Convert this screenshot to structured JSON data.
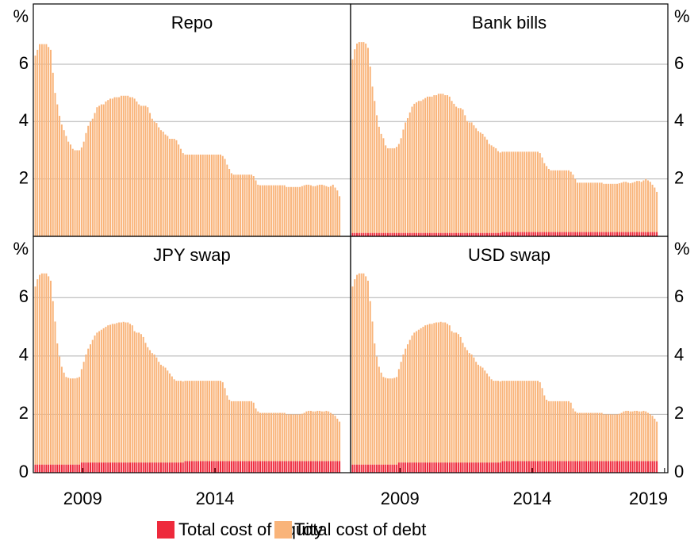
{
  "chart_data": [
    {
      "type": "bar",
      "stacked": true,
      "title": "Repo",
      "ylabel": "%",
      "ylim": [
        0,
        8.1
      ],
      "yticks": [
        2,
        4,
        6
      ],
      "grid": true,
      "xlim": [
        -0.9,
        143
      ],
      "series": [
        {
          "name": "Total cost of debt",
          "color": "#f9b47a",
          "values": [
            6.3,
            6.5,
            6.7,
            6.7,
            6.7,
            6.7,
            6.6,
            6.5,
            5.7,
            5.0,
            4.6,
            4.2,
            3.9,
            3.7,
            3.5,
            3.3,
            3.2,
            3.05,
            3.0,
            3.0,
            3.0,
            3.1,
            3.3,
            3.6,
            3.85,
            4.0,
            4.1,
            4.3,
            4.5,
            4.55,
            4.6,
            4.6,
            4.7,
            4.75,
            4.8,
            4.8,
            4.85,
            4.85,
            4.85,
            4.9,
            4.9,
            4.9,
            4.9,
            4.85,
            4.85,
            4.8,
            4.7,
            4.6,
            4.55,
            4.55,
            4.55,
            4.5,
            4.3,
            4.1,
            4.0,
            3.95,
            3.8,
            3.7,
            3.65,
            3.55,
            3.5,
            3.4,
            3.4,
            3.4,
            3.35,
            3.2,
            3.05,
            2.9,
            2.85,
            2.85,
            2.85,
            2.85,
            2.85,
            2.85,
            2.85,
            2.85,
            2.85,
            2.85,
            2.85,
            2.85,
            2.85,
            2.85,
            2.85,
            2.85,
            2.85,
            2.8,
            2.7,
            2.5,
            2.35,
            2.2,
            2.15,
            2.15,
            2.15,
            2.15,
            2.15,
            2.15,
            2.15,
            2.15,
            2.15,
            2.1,
            1.95,
            1.8,
            1.78,
            1.78,
            1.78,
            1.78,
            1.78,
            1.78,
            1.78,
            1.78,
            1.78,
            1.78,
            1.78,
            1.78,
            1.72,
            1.72,
            1.72,
            1.72,
            1.72,
            1.72,
            1.72,
            1.75,
            1.78,
            1.8,
            1.8,
            1.78,
            1.75,
            1.75,
            1.78,
            1.8,
            1.8,
            1.78,
            1.75,
            1.72,
            1.75,
            1.8,
            1.7,
            1.6,
            1.4
          ]
        }
      ]
    },
    {
      "type": "bar",
      "stacked": true,
      "title": "Bank bills",
      "ylabel": "%",
      "ylim": [
        0,
        8.1
      ],
      "yticks": [
        2,
        4,
        6
      ],
      "grid": true,
      "xlim": [
        -0.9,
        143
      ],
      "series": [
        {
          "name": "Total cost of equity",
          "color": "#ee2a3c",
          "values": [
            0.12,
            0.12,
            0.12,
            0.12,
            0.12,
            0.12,
            0.12,
            0.12,
            0.12,
            0.12,
            0.12,
            0.12,
            0.12,
            0.12,
            0.12,
            0.12,
            0.12,
            0.12,
            0.12,
            0.12,
            0.12,
            0.12,
            0.12,
            0.12,
            0.12,
            0.12,
            0.12,
            0.12,
            0.12,
            0.12,
            0.12,
            0.12,
            0.12,
            0.12,
            0.12,
            0.12,
            0.12,
            0.12,
            0.12,
            0.12,
            0.12,
            0.12,
            0.12,
            0.12,
            0.12,
            0.12,
            0.12,
            0.12,
            0.12,
            0.12,
            0.12,
            0.12,
            0.12,
            0.12,
            0.12,
            0.12,
            0.12,
            0.12,
            0.12,
            0.12,
            0.12,
            0.12,
            0.12,
            0.12,
            0.12,
            0.12,
            0.12,
            0.12,
            0.15,
            0.15,
            0.15,
            0.15,
            0.15,
            0.15,
            0.15,
            0.15,
            0.15,
            0.15,
            0.15,
            0.15,
            0.15,
            0.15,
            0.15,
            0.15,
            0.15,
            0.15,
            0.15,
            0.15,
            0.15,
            0.15,
            0.15,
            0.15,
            0.15,
            0.15,
            0.15,
            0.15,
            0.15,
            0.15,
            0.15,
            0.15,
            0.15,
            0.15,
            0.15,
            0.15,
            0.15,
            0.15,
            0.15,
            0.15,
            0.15,
            0.15,
            0.15,
            0.15,
            0.15,
            0.15,
            0.15,
            0.15,
            0.15,
            0.15,
            0.15,
            0.15,
            0.15,
            0.15,
            0.15,
            0.15,
            0.15,
            0.15,
            0.15,
            0.15,
            0.15,
            0.15,
            0.15,
            0.15,
            0.15,
            0.15,
            0.15,
            0.15,
            0.15,
            0.15,
            0.15
          ]
        },
        {
          "name": "Total cost of debt",
          "color": "#f9b47a",
          "values": [
            6.05,
            6.4,
            6.6,
            6.65,
            6.65,
            6.65,
            6.6,
            6.45,
            5.8,
            5.1,
            4.6,
            4.1,
            3.7,
            3.45,
            3.3,
            3.05,
            2.95,
            2.95,
            2.95,
            2.95,
            3.0,
            3.1,
            3.3,
            3.6,
            3.85,
            4.0,
            4.2,
            4.4,
            4.5,
            4.55,
            4.6,
            4.6,
            4.65,
            4.7,
            4.75,
            4.75,
            4.75,
            4.8,
            4.8,
            4.85,
            4.85,
            4.85,
            4.8,
            4.8,
            4.75,
            4.6,
            4.5,
            4.4,
            4.35,
            4.35,
            4.3,
            4.1,
            3.9,
            3.85,
            3.85,
            3.75,
            3.65,
            3.55,
            3.5,
            3.45,
            3.35,
            3.25,
            3.1,
            3.05,
            3.0,
            2.95,
            2.85,
            2.8,
            2.8,
            2.8,
            2.8,
            2.8,
            2.8,
            2.8,
            2.8,
            2.8,
            2.8,
            2.8,
            2.8,
            2.8,
            2.8,
            2.8,
            2.8,
            2.8,
            2.8,
            2.75,
            2.6,
            2.4,
            2.3,
            2.2,
            2.15,
            2.15,
            2.15,
            2.15,
            2.15,
            2.15,
            2.15,
            2.15,
            2.15,
            2.1,
            2.0,
            1.85,
            1.72,
            1.72,
            1.72,
            1.72,
            1.72,
            1.72,
            1.72,
            1.72,
            1.72,
            1.72,
            1.72,
            1.72,
            1.68,
            1.68,
            1.68,
            1.68,
            1.68,
            1.68,
            1.68,
            1.7,
            1.72,
            1.75,
            1.75,
            1.72,
            1.7,
            1.72,
            1.75,
            1.78,
            1.78,
            1.75,
            1.8,
            1.85,
            1.8,
            1.75,
            1.65,
            1.55,
            1.4
          ]
        }
      ]
    },
    {
      "type": "bar",
      "stacked": true,
      "title": "JPY swap",
      "ylabel": "%",
      "ylim": [
        0,
        8.1
      ],
      "yticks": [
        0,
        2,
        4,
        6
      ],
      "grid": true,
      "xlim": [
        -0.9,
        143
      ],
      "xticks": [
        {
          "value": 21.5,
          "label": "2009"
        },
        {
          "value": 81.5,
          "label": "2014"
        }
      ],
      "series": [
        {
          "name": "Total cost of equity",
          "color": "#ee2a3c",
          "values": [
            0.28,
            0.28,
            0.28,
            0.28,
            0.28,
            0.28,
            0.28,
            0.28,
            0.28,
            0.28,
            0.28,
            0.28,
            0.28,
            0.28,
            0.28,
            0.28,
            0.28,
            0.28,
            0.28,
            0.28,
            0.28,
            0.35,
            0.35,
            0.35,
            0.35,
            0.35,
            0.35,
            0.35,
            0.35,
            0.35,
            0.35,
            0.35,
            0.35,
            0.35,
            0.35,
            0.35,
            0.35,
            0.35,
            0.35,
            0.35,
            0.35,
            0.35,
            0.35,
            0.35,
            0.35,
            0.35,
            0.35,
            0.35,
            0.35,
            0.35,
            0.35,
            0.35,
            0.35,
            0.35,
            0.35,
            0.35,
            0.35,
            0.35,
            0.35,
            0.35,
            0.35,
            0.35,
            0.35,
            0.35,
            0.35,
            0.35,
            0.35,
            0.35,
            0.4,
            0.4,
            0.4,
            0.4,
            0.4,
            0.4,
            0.4,
            0.4,
            0.4,
            0.4,
            0.4,
            0.4,
            0.4,
            0.4,
            0.4,
            0.4,
            0.4,
            0.4,
            0.4,
            0.4,
            0.4,
            0.4,
            0.4,
            0.4,
            0.4,
            0.4,
            0.4,
            0.4,
            0.4,
            0.4,
            0.4,
            0.4,
            0.4,
            0.4,
            0.4,
            0.4,
            0.4,
            0.4,
            0.4,
            0.4,
            0.4,
            0.4,
            0.4,
            0.4,
            0.4,
            0.4,
            0.4,
            0.4,
            0.4,
            0.4,
            0.4,
            0.4,
            0.4,
            0.4,
            0.4,
            0.4,
            0.4,
            0.4,
            0.4,
            0.4,
            0.4,
            0.4,
            0.4,
            0.4,
            0.4,
            0.4,
            0.4,
            0.4,
            0.4,
            0.4,
            0.4
          ]
        },
        {
          "name": "Total cost of debt",
          "color": "#f9b47a",
          "values": [
            6.1,
            6.35,
            6.5,
            6.55,
            6.55,
            6.55,
            6.45,
            6.3,
            5.6,
            4.9,
            4.15,
            3.7,
            3.35,
            3.15,
            3.0,
            2.97,
            2.95,
            2.95,
            2.95,
            2.97,
            3.0,
            3.2,
            3.45,
            3.7,
            3.9,
            4.05,
            4.2,
            4.35,
            4.45,
            4.5,
            4.55,
            4.6,
            4.65,
            4.7,
            4.72,
            4.75,
            4.75,
            4.78,
            4.8,
            4.8,
            4.82,
            4.8,
            4.8,
            4.75,
            4.7,
            4.5,
            4.45,
            4.45,
            4.4,
            4.3,
            4.1,
            3.95,
            3.85,
            3.75,
            3.7,
            3.6,
            3.45,
            3.35,
            3.3,
            3.25,
            3.15,
            3.05,
            2.95,
            2.85,
            2.8,
            2.8,
            2.8,
            2.78,
            2.75,
            2.75,
            2.75,
            2.75,
            2.75,
            2.75,
            2.75,
            2.75,
            2.75,
            2.75,
            2.75,
            2.75,
            2.75,
            2.75,
            2.75,
            2.75,
            2.75,
            2.7,
            2.5,
            2.25,
            2.1,
            2.05,
            2.05,
            2.05,
            2.05,
            2.05,
            2.05,
            2.05,
            2.05,
            2.05,
            2.05,
            2.0,
            1.8,
            1.7,
            1.65,
            1.65,
            1.65,
            1.65,
            1.65,
            1.65,
            1.65,
            1.65,
            1.65,
            1.65,
            1.65,
            1.65,
            1.6,
            1.6,
            1.6,
            1.6,
            1.6,
            1.6,
            1.6,
            1.62,
            1.65,
            1.7,
            1.72,
            1.72,
            1.7,
            1.7,
            1.72,
            1.72,
            1.7,
            1.7,
            1.72,
            1.7,
            1.65,
            1.6,
            1.55,
            1.45,
            1.35
          ]
        }
      ]
    },
    {
      "type": "bar",
      "stacked": true,
      "title": "USD swap",
      "ylabel": "%",
      "ylim": [
        0,
        8.1
      ],
      "yticks": [
        0,
        2,
        4,
        6
      ],
      "grid": true,
      "xlim": [
        -0.9,
        143
      ],
      "xticks": [
        {
          "value": 21.5,
          "label": "2009"
        },
        {
          "value": 81.5,
          "label": "2014"
        },
        {
          "value": 141.5,
          "label": "2019"
        }
      ],
      "series": [
        {
          "name": "Total cost of equity",
          "color": "#ee2a3c",
          "values": [
            0.28,
            0.28,
            0.28,
            0.28,
            0.28,
            0.28,
            0.28,
            0.28,
            0.28,
            0.28,
            0.28,
            0.28,
            0.28,
            0.28,
            0.28,
            0.28,
            0.28,
            0.28,
            0.28,
            0.28,
            0.28,
            0.35,
            0.35,
            0.35,
            0.35,
            0.35,
            0.35,
            0.35,
            0.35,
            0.35,
            0.35,
            0.35,
            0.35,
            0.35,
            0.35,
            0.35,
            0.35,
            0.35,
            0.35,
            0.35,
            0.35,
            0.35,
            0.35,
            0.35,
            0.35,
            0.35,
            0.35,
            0.35,
            0.35,
            0.35,
            0.35,
            0.35,
            0.35,
            0.35,
            0.35,
            0.35,
            0.35,
            0.35,
            0.35,
            0.35,
            0.35,
            0.35,
            0.35,
            0.35,
            0.35,
            0.35,
            0.35,
            0.35,
            0.4,
            0.4,
            0.4,
            0.4,
            0.4,
            0.4,
            0.4,
            0.4,
            0.4,
            0.4,
            0.4,
            0.4,
            0.4,
            0.4,
            0.4,
            0.4,
            0.4,
            0.4,
            0.4,
            0.4,
            0.4,
            0.4,
            0.4,
            0.4,
            0.4,
            0.4,
            0.4,
            0.4,
            0.4,
            0.4,
            0.4,
            0.4,
            0.4,
            0.4,
            0.4,
            0.4,
            0.4,
            0.4,
            0.4,
            0.4,
            0.4,
            0.4,
            0.4,
            0.4,
            0.4,
            0.4,
            0.4,
            0.4,
            0.4,
            0.4,
            0.4,
            0.4,
            0.4,
            0.4,
            0.4,
            0.4,
            0.4,
            0.4,
            0.4,
            0.4,
            0.4,
            0.4,
            0.4,
            0.4,
            0.4,
            0.4,
            0.4,
            0.4,
            0.4,
            0.4,
            0.4
          ]
        },
        {
          "name": "Total cost of debt",
          "color": "#f9b47a",
          "values": [
            6.1,
            6.35,
            6.5,
            6.55,
            6.55,
            6.55,
            6.45,
            6.3,
            5.6,
            4.9,
            4.15,
            3.7,
            3.35,
            3.15,
            3.0,
            2.97,
            2.95,
            2.95,
            2.95,
            2.97,
            3.0,
            3.2,
            3.45,
            3.7,
            3.9,
            4.05,
            4.2,
            4.35,
            4.45,
            4.5,
            4.55,
            4.6,
            4.65,
            4.7,
            4.72,
            4.75,
            4.75,
            4.78,
            4.8,
            4.8,
            4.82,
            4.8,
            4.8,
            4.75,
            4.7,
            4.5,
            4.45,
            4.45,
            4.4,
            4.3,
            4.1,
            3.95,
            3.85,
            3.75,
            3.7,
            3.6,
            3.45,
            3.35,
            3.3,
            3.25,
            3.15,
            3.05,
            2.95,
            2.85,
            2.8,
            2.8,
            2.8,
            2.78,
            2.75,
            2.75,
            2.75,
            2.75,
            2.75,
            2.75,
            2.75,
            2.75,
            2.75,
            2.75,
            2.75,
            2.75,
            2.75,
            2.75,
            2.75,
            2.75,
            2.75,
            2.7,
            2.5,
            2.25,
            2.1,
            2.05,
            2.05,
            2.05,
            2.05,
            2.05,
            2.05,
            2.05,
            2.05,
            2.05,
            2.05,
            2.0,
            1.8,
            1.7,
            1.65,
            1.65,
            1.65,
            1.65,
            1.65,
            1.65,
            1.65,
            1.65,
            1.65,
            1.65,
            1.65,
            1.65,
            1.6,
            1.6,
            1.6,
            1.6,
            1.6,
            1.6,
            1.6,
            1.62,
            1.65,
            1.7,
            1.72,
            1.72,
            1.7,
            1.7,
            1.72,
            1.72,
            1.7,
            1.7,
            1.72,
            1.7,
            1.65,
            1.6,
            1.55,
            1.45,
            1.35
          ]
        }
      ]
    }
  ]
}
